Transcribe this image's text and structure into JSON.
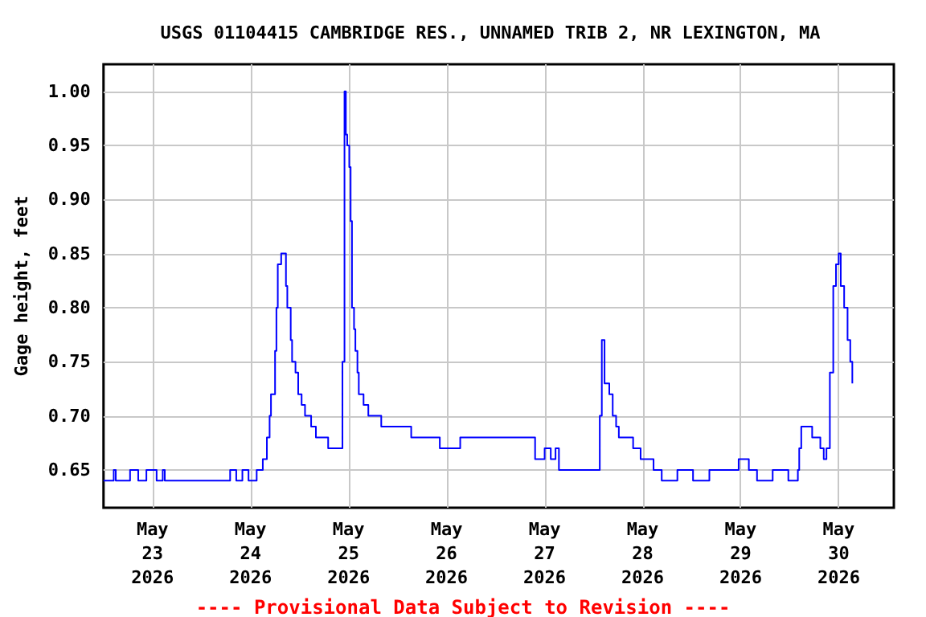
{
  "chart_data": {
    "type": "step",
    "title": "USGS 01104415 CAMBRIDGE RES., UNNAMED TRIB 2, NR LEXINGTON, MA",
    "ylabel": "Gage height, feet",
    "annotations": [
      "---- Provisional Data Subject to Revision ----"
    ],
    "xlim": [
      "2026-05-22T12:00",
      "2026-05-30T13:30"
    ],
    "xticks": [
      {
        "value": "2026-05-23",
        "label": "May\n23\n2026"
      },
      {
        "value": "2026-05-24",
        "label": "May\n24\n2026"
      },
      {
        "value": "2026-05-25",
        "label": "May\n25\n2026"
      },
      {
        "value": "2026-05-26",
        "label": "May\n26\n2026"
      },
      {
        "value": "2026-05-27",
        "label": "May\n27\n2026"
      },
      {
        "value": "2026-05-28",
        "label": "May\n28\n2026"
      },
      {
        "value": "2026-05-29",
        "label": "May\n29\n2026"
      },
      {
        "value": "2026-05-30",
        "label": "May\n30\n2026"
      }
    ],
    "ylim": [
      0.615,
      1.025
    ],
    "yticks": [
      0.65,
      {
        "value": 0.7,
        "label": "0.70"
      },
      0.75,
      {
        "value": 0.8,
        "label": "0.80"
      },
      0.85,
      {
        "value": 0.9,
        "label": "0.90"
      },
      0.95,
      {
        "value": 1,
        "label": "1.00"
      }
    ],
    "grid": true,
    "marker": "none",
    "line_style": "solid",
    "x": [
      "2026-05-22T12:00",
      "2026-05-22T14:30",
      "2026-05-22T15:00",
      "2026-05-22T18:30",
      "2026-05-22T20:30",
      "2026-05-22T22:30",
      "2026-05-23T01:00",
      "2026-05-23T02:30",
      "2026-05-23T03:00",
      "2026-05-23T18:00",
      "2026-05-23T19:00",
      "2026-05-23T20:30",
      "2026-05-23T22:00",
      "2026-05-23T23:30",
      "2026-05-24T01:30",
      "2026-05-24T03:00",
      "2026-05-24T04:00",
      "2026-05-24T04:40",
      "2026-05-24T05:00",
      "2026-05-24T06:00",
      "2026-05-24T06:20",
      "2026-05-24T06:40",
      "2026-05-24T07:30",
      "2026-05-24T08:10",
      "2026-05-24T08:40",
      "2026-05-24T09:00",
      "2026-05-24T09:50",
      "2026-05-24T10:10",
      "2026-05-24T11:00",
      "2026-05-24T11:40",
      "2026-05-24T12:30",
      "2026-05-24T13:20",
      "2026-05-24T14:50",
      "2026-05-24T16:00",
      "2026-05-24T19:00",
      "2026-05-24T22:00",
      "2026-05-24T22:30",
      "2026-05-24T23:00",
      "2026-05-24T23:20",
      "2026-05-24T23:40",
      "2026-05-25T00:10",
      "2026-05-25T00:30",
      "2026-05-25T00:50",
      "2026-05-25T01:20",
      "2026-05-25T01:40",
      "2026-05-25T02:10",
      "2026-05-25T02:30",
      "2026-05-25T03:40",
      "2026-05-25T04:50",
      "2026-05-25T08:00",
      "2026-05-25T15:20",
      "2026-05-25T22:20",
      "2026-05-26T03:20",
      "2026-05-26T21:40",
      "2026-05-27T00:00",
      "2026-05-27T01:30",
      "2026-05-27T02:40",
      "2026-05-27T03:30",
      "2026-05-27T13:10",
      "2026-05-27T13:30",
      "2026-05-27T14:00",
      "2026-05-27T14:40",
      "2026-05-27T15:50",
      "2026-05-27T16:40",
      "2026-05-27T17:30",
      "2026-05-27T18:10",
      "2026-05-27T21:40",
      "2026-05-27T23:30",
      "2026-05-28T02:40",
      "2026-05-28T04:40",
      "2026-05-28T08:30",
      "2026-05-28T12:20",
      "2026-05-28T16:20",
      "2026-05-28T23:30",
      "2026-05-29T02:00",
      "2026-05-29T04:00",
      "2026-05-29T07:50",
      "2026-05-29T11:40",
      "2026-05-29T14:00",
      "2026-05-29T14:20",
      "2026-05-29T14:50",
      "2026-05-29T17:30",
      "2026-05-29T19:30",
      "2026-05-29T20:20",
      "2026-05-29T21:00",
      "2026-05-29T21:50",
      "2026-05-29T22:40",
      "2026-05-29T23:20",
      "2026-05-30T00:00",
      "2026-05-30T00:30",
      "2026-05-30T01:20",
      "2026-05-30T02:10",
      "2026-05-30T02:50",
      "2026-05-30T03:20"
    ],
    "series": [
      {
        "color": "#0000ff",
        "values": [
          0.64,
          0.65,
          0.64,
          0.65,
          0.64,
          0.65,
          0.64,
          0.65,
          0.64,
          0.64,
          0.65,
          0.64,
          0.65,
          0.64,
          0.65,
          0.66,
          0.68,
          0.7,
          0.72,
          0.76,
          0.8,
          0.84,
          0.85,
          0.85,
          0.82,
          0.8,
          0.77,
          0.75,
          0.74,
          0.72,
          0.71,
          0.7,
          0.69,
          0.68,
          0.67,
          0.67,
          0.75,
          1.0,
          0.96,
          0.95,
          0.93,
          0.88,
          0.8,
          0.78,
          0.76,
          0.74,
          0.72,
          0.71,
          0.7,
          0.69,
          0.68,
          0.67,
          0.68,
          0.66,
          0.67,
          0.66,
          0.67,
          0.65,
          0.65,
          0.7,
          0.77,
          0.73,
          0.72,
          0.7,
          0.69,
          0.68,
          0.67,
          0.66,
          0.65,
          0.64,
          0.65,
          0.64,
          0.65,
          0.66,
          0.65,
          0.64,
          0.65,
          0.64,
          0.65,
          0.67,
          0.69,
          0.68,
          0.67,
          0.66,
          0.67,
          0.74,
          0.82,
          0.84,
          0.85,
          0.82,
          0.8,
          0.77,
          0.75,
          0.73
        ]
      }
    ]
  }
}
